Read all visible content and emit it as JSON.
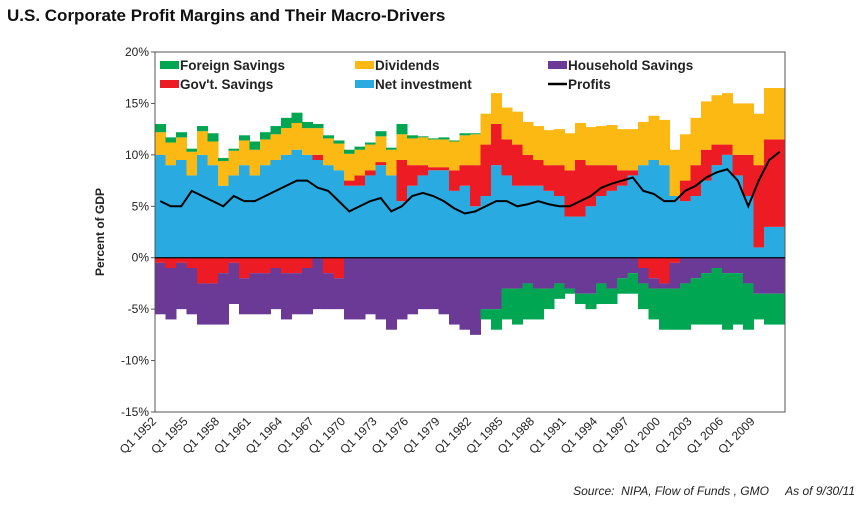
{
  "chart_data": {
    "type": "area",
    "title": "U.S. Corporate Profit Margins and Their Macro-Drivers",
    "ylabel": "Percent of GDP",
    "xlabel": "",
    "ylim": [
      -15,
      20
    ],
    "yticks": [
      "-15%",
      "-10%",
      "-5%",
      "0%",
      "5%",
      "10%",
      "15%",
      "20%"
    ],
    "ytick_values": [
      -15,
      -10,
      -5,
      0,
      5,
      10,
      15,
      20
    ],
    "xtick_labels": [
      "Q1 1952",
      "Q1 1955",
      "Q1 1958",
      "Q1 1961",
      "Q1 1964",
      "Q1 1967",
      "Q1 1970",
      "Q1 1973",
      "Q1 1976",
      "Q1 1979",
      "Q1 1982",
      "Q1 1985",
      "Q1 1988",
      "Q1 1991",
      "Q1 1994",
      "Q1 1997",
      "Q1 2000",
      "Q1 2003",
      "Q1 2006",
      "Q1 2009"
    ],
    "grid": false,
    "legend_placement": "top",
    "x": [
      1952,
      1953,
      1954,
      1955,
      1956,
      1957,
      1958,
      1959,
      1960,
      1961,
      1962,
      1963,
      1964,
      1965,
      1966,
      1967,
      1968,
      1969,
      1970,
      1971,
      1972,
      1973,
      1974,
      1975,
      1976,
      1977,
      1978,
      1979,
      1980,
      1981,
      1982,
      1983,
      1984,
      1985,
      1986,
      1987,
      1988,
      1989,
      1990,
      1991,
      1992,
      1993,
      1994,
      1995,
      1996,
      1997,
      1998,
      1999,
      2000,
      2001,
      2002,
      2003,
      2004,
      2005,
      2006,
      2007,
      2008,
      2009,
      2010,
      2011
    ],
    "series": [
      {
        "name": "Net investment",
        "color": "#29abe2",
        "kind": "stack",
        "values": [
          10,
          9,
          9.5,
          8,
          10,
          9,
          7,
          8,
          9,
          8,
          9,
          9.5,
          10,
          10.5,
          10,
          9.5,
          9,
          8.5,
          7,
          7,
          8,
          9,
          8,
          5.5,
          7,
          8,
          8.5,
          8.5,
          6.5,
          7,
          5,
          6,
          9,
          8,
          7,
          7,
          7,
          6.5,
          6,
          4,
          4,
          5,
          6,
          6.5,
          7,
          8,
          9,
          9.5,
          9,
          6,
          5.5,
          6,
          7.5,
          9,
          10,
          8,
          6,
          1,
          3,
          3
        ]
      },
      {
        "name": "Gov't. Savings",
        "color": "#ed1c24",
        "kind": "stack",
        "values": [
          -0.5,
          -1,
          -0.5,
          -1,
          -2.5,
          -2.5,
          -1.5,
          -0.5,
          -2,
          -1.5,
          -1.5,
          -1,
          -1.5,
          -1.5,
          -1,
          0.5,
          -1.5,
          -2,
          0.5,
          1,
          0.5,
          0.3,
          0,
          4,
          2,
          1,
          0.3,
          0.3,
          2,
          2,
          4,
          5,
          4,
          3.5,
          4,
          3,
          2.5,
          2.5,
          3,
          4.5,
          5.5,
          4,
          3,
          2.5,
          1.5,
          0.5,
          -1,
          -2,
          -2.5,
          -0.5,
          2,
          3,
          3,
          2,
          1,
          2,
          4,
          8,
          8.5,
          8.5
        ]
      },
      {
        "name": "Dividends",
        "color": "#fdb913",
        "kind": "stack",
        "values": [
          2.2,
          2.2,
          2.2,
          2.3,
          2.3,
          2.3,
          2.4,
          2.4,
          2.4,
          2.5,
          2.5,
          2.5,
          2.6,
          2.6,
          2.6,
          2.6,
          2.6,
          2.6,
          2.6,
          2.5,
          2.5,
          2.5,
          2.5,
          2.5,
          2.6,
          2.7,
          2.7,
          2.7,
          2.8,
          2.9,
          3,
          3,
          3,
          3.1,
          3.2,
          3.2,
          3.3,
          3.4,
          3.5,
          3.6,
          3.6,
          3.7,
          3.8,
          3.9,
          4,
          4,
          4.2,
          4.3,
          4.4,
          4.5,
          4.5,
          4.6,
          4.7,
          4.8,
          5,
          5,
          5,
          5,
          5,
          5
        ]
      },
      {
        "name": "Foreign Savings",
        "color": "#00a651",
        "kind": "stack",
        "values": [
          0.8,
          0.5,
          0.5,
          0.3,
          0.5,
          0.8,
          0.3,
          0.2,
          0.5,
          0.8,
          0.7,
          0.8,
          1,
          1,
          0.6,
          0.4,
          0.3,
          0.3,
          0.4,
          0.3,
          0.2,
          0.5,
          0.2,
          1,
          0.3,
          0.1,
          0.1,
          0.2,
          0.1,
          0.2,
          0.1,
          -1,
          -2,
          -3,
          -3.5,
          -3.5,
          -3,
          -2,
          -1.5,
          -0.5,
          -1,
          -1.5,
          -2,
          -1.5,
          -1.5,
          -2,
          -2.5,
          -3,
          -4,
          -4,
          -4.5,
          -4.5,
          -5,
          -5.5,
          -5.5,
          -5,
          -4.5,
          -2.5,
          -3,
          -3
        ]
      },
      {
        "name": "Household Savings",
        "color": "#6b3a96",
        "kind": "stack",
        "values": [
          -5,
          -5,
          -4.5,
          -4.5,
          -4,
          -4,
          -5,
          -4,
          -3.5,
          -4,
          -4,
          -4,
          -4.5,
          -4,
          -4.5,
          -5,
          -3.5,
          -3,
          -6,
          -6,
          -5.5,
          -6,
          -7,
          -6,
          -5.5,
          -5,
          -5,
          -5.5,
          -6.5,
          -7,
          -7.5,
          -5,
          -5,
          -3,
          -3,
          -2.5,
          -3,
          -3,
          -2.5,
          -3,
          -3.5,
          -3.5,
          -2.5,
          -3,
          -2,
          -1.5,
          -1.5,
          -1,
          -0.5,
          -2.5,
          -2.5,
          -2,
          -1.5,
          -1,
          -1.5,
          -1.5,
          -2.5,
          -3.5,
          -3.5,
          -3.5
        ]
      },
      {
        "name": "Profits",
        "color": "#000000",
        "kind": "line",
        "values": [
          5.5,
          5,
          5,
          6.5,
          6,
          5.5,
          5,
          6,
          5.5,
          5.5,
          6,
          6.5,
          7,
          7.5,
          7.5,
          6.8,
          6.5,
          5.5,
          4.5,
          5,
          5.5,
          5.8,
          4.5,
          5,
          6,
          6.3,
          6,
          5.5,
          4.8,
          4.3,
          4.5,
          5,
          5.5,
          5.5,
          5,
          5.2,
          5.5,
          5.2,
          5,
          5,
          5.5,
          6,
          6.8,
          7.2,
          7.5,
          7.8,
          6.5,
          6.2,
          5.5,
          5.5,
          6.5,
          7,
          7.8,
          8.3,
          8.6,
          7.5,
          5,
          7.5,
          9.5,
          10.3
        ]
      }
    ],
    "legend": [
      "Foreign Savings",
      "Dividends",
      "Household Savings",
      "Gov't. Savings",
      "Net investment",
      "Profits"
    ]
  },
  "footer": {
    "source": "Source:  NIPA, Flow of Funds , GMO",
    "as_of": "As of 9/30/11"
  }
}
